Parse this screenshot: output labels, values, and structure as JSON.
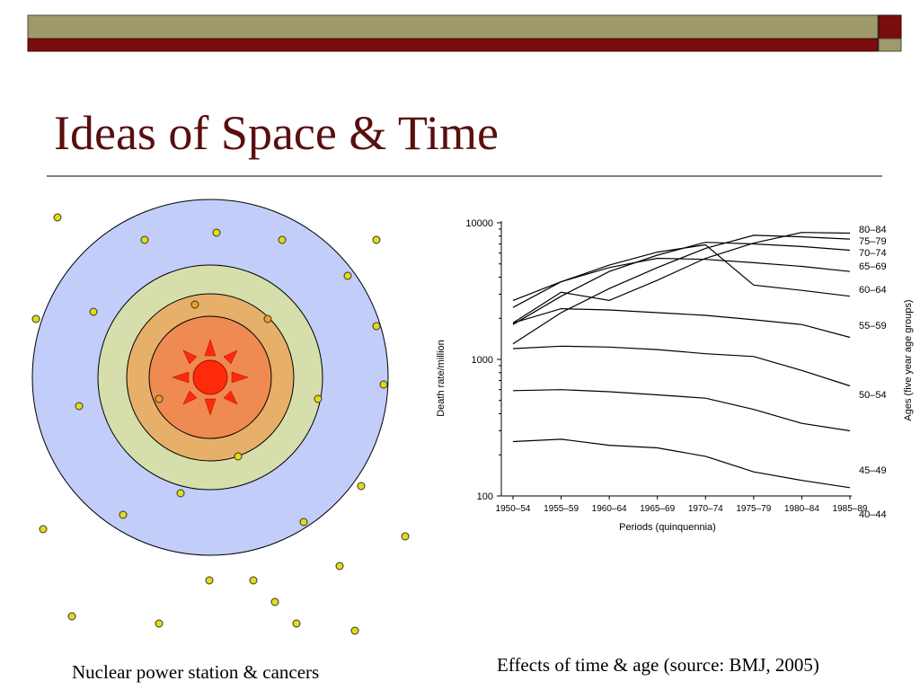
{
  "slide": {
    "title": "Ideas of Space & Time",
    "caption_left": "Nuclear power station & cancers",
    "caption_right": "Effects of time & age (source: BMJ, 2005)"
  },
  "theme": {
    "olive": "#9e9a6b",
    "maroon": "#7a0d0d",
    "title_color": "#5a0e0e"
  },
  "diagram": {
    "zone_colors": [
      "#c3cdfa",
      "#d6dfab",
      "#e6b06a",
      "#ee8a52"
    ],
    "source_icon": "sun-icon",
    "source_color": "#ff2a0a",
    "dot_color": "#e2dc12",
    "inner_dot_color": "#f0a020"
  },
  "chart_data": {
    "type": "line",
    "xlabel": "Periods (quinquennia)",
    "ylabel": "Death rate/million",
    "right_label": "Ages (five year age groups)",
    "y_scale": "log",
    "ylim": [
      100,
      10000
    ],
    "yticks": [
      "10000",
      "1000",
      "100"
    ],
    "yticks_values": [
      10000,
      1000,
      100
    ],
    "categories": [
      "1950–54",
      "1955–59",
      "1960–64",
      "1965–69",
      "1970–74",
      "1975–79",
      "1980–84",
      "1985–89"
    ],
    "series": [
      {
        "name": "80–84",
        "values": [
          1850,
          3100,
          2700,
          3800,
          5500,
          7100,
          8500,
          8400
        ]
      },
      {
        "name": "75–79",
        "values": [
          1300,
          2200,
          3300,
          4700,
          6500,
          8100,
          7900,
          7600
        ]
      },
      {
        "name": "70–74",
        "values": [
          1800,
          2900,
          4400,
          5800,
          7200,
          7000,
          6700,
          6300
        ]
      },
      {
        "name": "65–69",
        "values": [
          2400,
          3700,
          4700,
          5500,
          5400,
          5100,
          4800,
          4400
        ]
      },
      {
        "name": "60–64",
        "values": [
          2700,
          3700,
          4900,
          6100,
          6900,
          3500,
          3200,
          2900
        ]
      },
      {
        "name": "55–59",
        "values": [
          1850,
          2350,
          2300,
          2200,
          2100,
          1950,
          1800,
          1450
        ]
      },
      {
        "name": "50–54",
        "values": [
          1200,
          1250,
          1230,
          1180,
          1100,
          1050,
          830,
          640
        ]
      },
      {
        "name": "45–49",
        "values": [
          590,
          600,
          580,
          550,
          520,
          430,
          340,
          300
        ]
      },
      {
        "name": "40–44",
        "values": [
          250,
          260,
          235,
          225,
          195,
          150,
          130,
          115
        ]
      }
    ]
  }
}
